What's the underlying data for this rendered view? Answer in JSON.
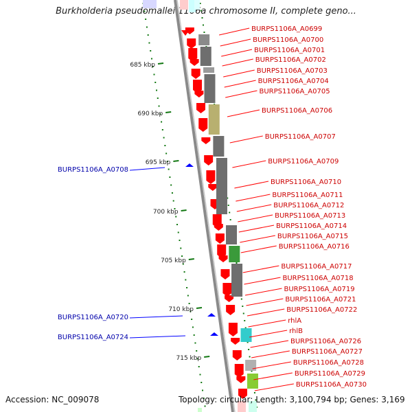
{
  "title": "Burkholderia pseudomallei 1106a chromosome II, complete geno...",
  "footer": {
    "accession": "Accession: NC_009078",
    "summary": "Topology: circular; Length: 3,100,794 bp; Genes: 3,169"
  },
  "colors": {
    "forward_gene": "#ff0000",
    "reverse_gene": "#0000ff",
    "forward_label": "#cc0000",
    "reverse_label": "#0000aa",
    "tick": "#117711",
    "backbone": "#8a8a8a"
  },
  "scale_labels": [
    "685 kbp",
    "690 kbp",
    "695 kbp",
    "700 kbp",
    "705 kbp",
    "710 kbp",
    "715 kbp"
  ],
  "forward_genes": [
    {
      "label": "BURPS1106A_A0699"
    },
    {
      "label": "BURPS1106A_A0700"
    },
    {
      "label": "BURPS1106A_A0701"
    },
    {
      "label": "BURPS1106A_A0702"
    },
    {
      "label": "BURPS1106A_A0703"
    },
    {
      "label": "BURPS1106A_A0704"
    },
    {
      "label": "BURPS1106A_A0705"
    },
    {
      "label": "BURPS1106A_A0706"
    },
    {
      "label": "BURPS1106A_A0707"
    },
    {
      "label": "BURPS1106A_A0709"
    },
    {
      "label": "BURPS1106A_A0710"
    },
    {
      "label": "BURPS1106A_A0711"
    },
    {
      "label": "BURPS1106A_A0712"
    },
    {
      "label": "BURPS1106A_A0713"
    },
    {
      "label": "BURPS1106A_A0714"
    },
    {
      "label": "BURPS1106A_A0715"
    },
    {
      "label": "BURPS1106A_A0716"
    },
    {
      "label": "BURPS1106A_A0717"
    },
    {
      "label": "BURPS1106A_A0718"
    },
    {
      "label": "BURPS1106A_A0719"
    },
    {
      "label": "BURPS1106A_A0721"
    },
    {
      "label": "BURPS1106A_A0722"
    },
    {
      "label": "rhlA"
    },
    {
      "label": "rhlB"
    },
    {
      "label": "BURPS1106A_A0726"
    },
    {
      "label": "BURPS1106A_A0727"
    },
    {
      "label": "BURPS1106A_A0728"
    },
    {
      "label": "BURPS1106A_A0729"
    },
    {
      "label": "BURPS1106A_A0730"
    }
  ],
  "reverse_genes": [
    {
      "label": "BURPS1106A_A0708"
    },
    {
      "label": "BURPS1106A_A0720"
    },
    {
      "label": "BURPS1106A_A0724"
    }
  ]
}
